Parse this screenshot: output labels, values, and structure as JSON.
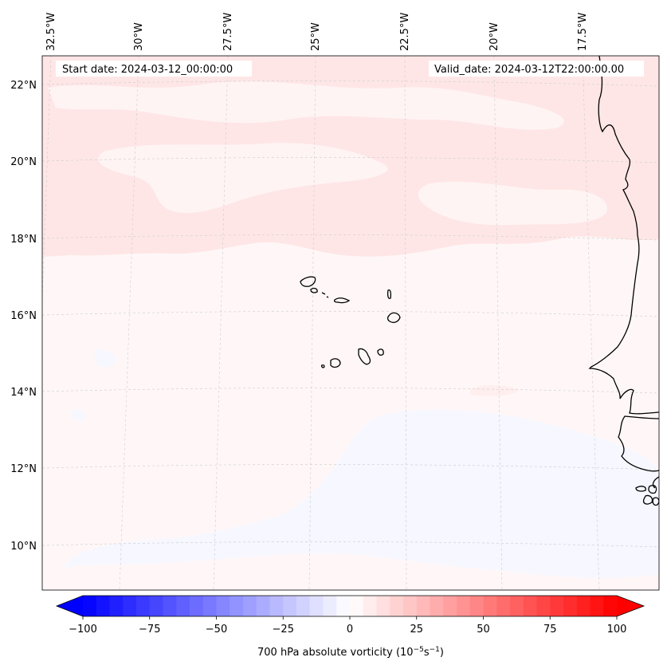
{
  "map": {
    "start_date_text": "Start date: 2024-03-12_00:00:00",
    "valid_date_text": "Valid_date: 2024-03-12T22:00:00.00",
    "lon_labels": [
      "32.5°W",
      "30°W",
      "27.5°W",
      "25°W",
      "22.5°W",
      "20°W",
      "17.5°W"
    ],
    "lat_labels": [
      "22°N",
      "20°N",
      "18°N",
      "16°N",
      "14°N",
      "12°N",
      "10°N"
    ]
  },
  "colorbar": {
    "ticks": [
      "−100",
      "−75",
      "−50",
      "−25",
      "0",
      "25",
      "50",
      "75",
      "100"
    ],
    "label_main": "700 hPa absolute vorticity (10",
    "label_exp1": "−5",
    "label_mid": "s",
    "label_exp2": "−1",
    "label_end": ")",
    "min_value": -100,
    "max_value": 100,
    "step": 5,
    "color_min": "#0000ff",
    "color_zero": "#ffffff",
    "color_max": "#ff0000"
  },
  "colors": {
    "background_field": "#fff7f7",
    "positive_band": "#ffe6e6",
    "negative_patch": "#f5f7ff",
    "coastline": "#000000",
    "gridline": "#cccccc"
  }
}
